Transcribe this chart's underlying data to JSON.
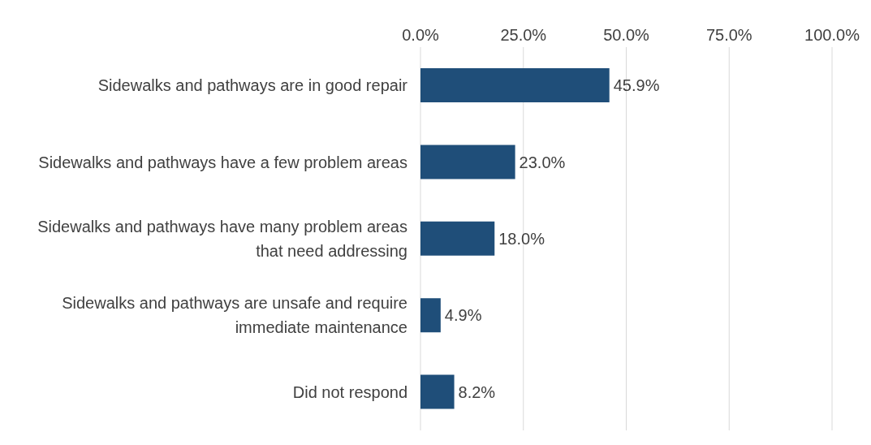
{
  "chart_data": {
    "type": "bar",
    "orientation": "horizontal",
    "categories": [
      "Sidewalks and pathways are in good repair",
      "Sidewalks and pathways have a few problem areas",
      "Sidewalks and pathways have many problem areas that need addressing",
      "Sidewalks and pathways are unsafe and require immediate maintenance",
      "Did not respond"
    ],
    "values": [
      45.9,
      23.0,
      18.0,
      4.9,
      8.2
    ],
    "value_labels": [
      "45.9%",
      "23.0%",
      "18.0%",
      "4.9%",
      "8.2%"
    ],
    "color": "#1f4e79",
    "xlim": [
      0,
      100
    ],
    "xticks": [
      {
        "value": 0,
        "label": "0.0%"
      },
      {
        "value": 25,
        "label": "25.0%"
      },
      {
        "value": 50,
        "label": "50.0%"
      },
      {
        "value": 75,
        "label": "75.0%"
      },
      {
        "value": 100,
        "label": "100.0%"
      }
    ],
    "grid": "x"
  }
}
